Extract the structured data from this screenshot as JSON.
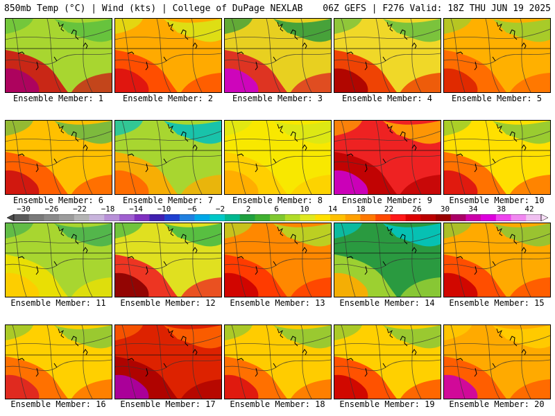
{
  "header": {
    "left": "850mb Temp (°C) | Wind (kts) | College of DuPage NEXLAB",
    "right": "06Z GEFS | F276 Valid: 18Z THU JUN 19 2025"
  },
  "members": [
    {
      "label": "Ensemble Member: 1",
      "bg": "#a8d630",
      "warm": "#cc1414",
      "hot": "#aa0066",
      "cool": "#5cc040"
    },
    {
      "label": "Ensemble Member: 2",
      "bg": "#ffaa00",
      "warm": "#ff4400",
      "hot": "#dd1111",
      "cool": "#d8e818"
    },
    {
      "label": "Ensemble Member: 3",
      "bg": "#e8d020",
      "warm": "#dd2222",
      "hot": "#cc00cc",
      "cool": "#2a9a40"
    },
    {
      "label": "Ensemble Member: 4",
      "bg": "#f0d828",
      "warm": "#ee3300",
      "hot": "#aa0000",
      "cool": "#66c040"
    },
    {
      "label": "Ensemble Member: 5",
      "bg": "#ffb000",
      "warm": "#ff6600",
      "hot": "#dd2200",
      "cool": "#99d030"
    },
    {
      "label": "Ensemble Member: 6",
      "bg": "#ffc000",
      "warm": "#ff5500",
      "hot": "#cc1111",
      "cool": "#66b848"
    },
    {
      "label": "Ensemble Member: 7",
      "bg": "#a8d630",
      "warm": "#ffaa00",
      "hot": "#ff6600",
      "cool": "#00c0c0"
    },
    {
      "label": "Ensemble Member: 8",
      "bg": "#f8e800",
      "warm": "#ffcc00",
      "hot": "#ffaa00",
      "cool": "#d8e818"
    },
    {
      "label": "Ensemble Member: 9",
      "bg": "#ee2222",
      "warm": "#bb0000",
      "hot": "#cc00cc",
      "cool": "#ffaa00"
    },
    {
      "label": "Ensemble Member: 10",
      "bg": "#ffe000",
      "warm": "#ff6600",
      "hot": "#dd1111",
      "cool": "#88c838"
    },
    {
      "label": "Ensemble Member: 11",
      "bg": "#a8d630",
      "warm": "#f0e000",
      "hot": "#ffcc00",
      "cool": "#44b050"
    },
    {
      "label": "Ensemble Member: 12",
      "bg": "#e0e020",
      "warm": "#ee2222",
      "hot": "#880000",
      "cool": "#40b848"
    },
    {
      "label": "Ensemble Member: 13",
      "bg": "#ff8800",
      "warm": "#ff3300",
      "hot": "#cc0000",
      "cool": "#b0dc28"
    },
    {
      "label": "Ensemble Member: 14",
      "bg": "#2a9a40",
      "warm": "#a8d630",
      "hot": "#ffaa00",
      "cool": "#00c8c8"
    },
    {
      "label": "Ensemble Member: 15",
      "bg": "#ffaa00",
      "warm": "#ff4400",
      "hot": "#cc0000",
      "cool": "#88c838"
    },
    {
      "label": "Ensemble Member: 16",
      "bg": "#ffd000",
      "warm": "#ff6600",
      "hot": "#dd2222",
      "cool": "#88c838"
    },
    {
      "label": "Ensemble Member: 17",
      "bg": "#dd2200",
      "warm": "#aa0000",
      "hot": "#aa00aa",
      "cool": "#ff6600"
    },
    {
      "label": "Ensemble Member: 18",
      "bg": "#ffcc00",
      "warm": "#ff6600",
      "hot": "#dd1111",
      "cool": "#88c838"
    },
    {
      "label": "Ensemble Member: 19",
      "bg": "#ffd000",
      "warm": "#ff4400",
      "hot": "#cc0000",
      "cool": "#88c838"
    },
    {
      "label": "Ensemble Member: 20",
      "bg": "#ffaa00",
      "warm": "#ff5500",
      "hot": "#cc00aa",
      "cool": "#ffd000"
    }
  ],
  "colorbar": {
    "tick_labels": [
      "−30",
      "−26",
      "−22",
      "−18",
      "−14",
      "−10",
      "−6",
      "−2",
      "2",
      "6",
      "10",
      "14",
      "18",
      "22",
      "26",
      "30",
      "34",
      "38",
      "42"
    ],
    "colors": [
      "#5a5a5a",
      "#7a7a7a",
      "#8a8a8a",
      "#9c9c9c",
      "#b4b4b4",
      "#c8b4dc",
      "#b890d8",
      "#a060d0",
      "#8030c0",
      "#4020b0",
      "#2040d0",
      "#2080e0",
      "#00a8e8",
      "#00c8c8",
      "#00b890",
      "#20a040",
      "#40b030",
      "#80c830",
      "#b0dc28",
      "#e0e820",
      "#ffe000",
      "#ffc000",
      "#ffa000",
      "#ff7800",
      "#ff4800",
      "#ff1818",
      "#dd0000",
      "#bb0000",
      "#990000",
      "#aa0066",
      "#cc00aa",
      "#dd00dd",
      "#ee44ee",
      "#f088f0",
      "#f0c0f0"
    ]
  }
}
